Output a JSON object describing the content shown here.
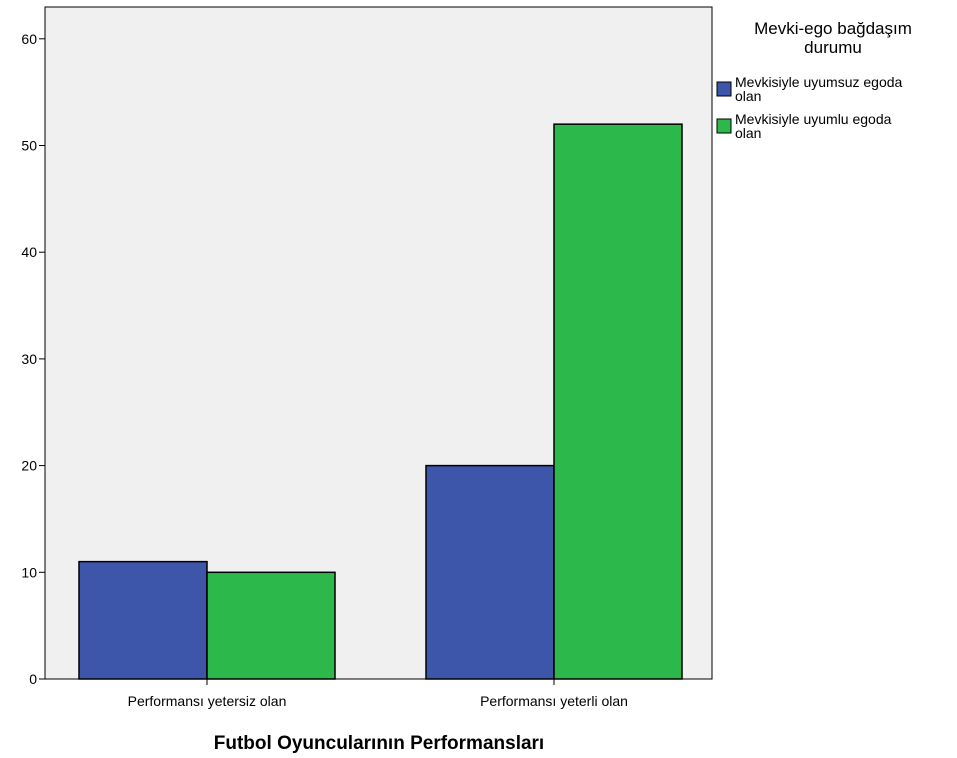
{
  "chart_data": {
    "type": "bar",
    "categories": [
      "Performansı yetersiz olan",
      "Performansı yeterli olan"
    ],
    "series": [
      {
        "name": "Mevkisiyle uyumsuz egoda olan",
        "values": [
          11,
          20
        ],
        "color": "#3d56aa"
      },
      {
        "name": "Mevkisiyle uyumlu egoda olan",
        "values": [
          10,
          52
        ],
        "color": "#2db84b"
      }
    ],
    "xlabel": "Futbol Oyuncularının Performansları",
    "ylabel": "",
    "ylim": [
      0,
      62
    ],
    "yticks": [
      0,
      10,
      20,
      30,
      40,
      50,
      60
    ],
    "legend": {
      "title": "Mevki-ego bağdaşım durumu",
      "position": "right"
    },
    "plot_background": "#f0f0f0",
    "grid": false
  }
}
